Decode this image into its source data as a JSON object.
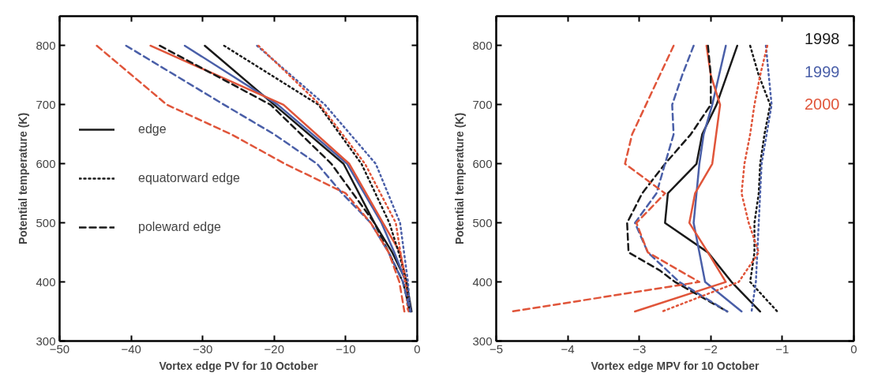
{
  "chart_data": [
    {
      "type": "line",
      "xlabel": "Vortex edge PV for 10 October",
      "ylabel": "Potential temperature (K)",
      "xlim": [
        -50,
        0
      ],
      "ylim": [
        300,
        850
      ],
      "xticks": [
        -50,
        -40,
        -30,
        -20,
        -10,
        0
      ],
      "yticks": [
        300,
        400,
        500,
        600,
        700,
        800
      ],
      "grid": false,
      "legend": "left",
      "marker": "none",
      "series": [
        {
          "name": "edge",
          "color": "#1a1a1a",
          "line_style": "solid",
          "x": [
            -29.7,
            -20,
            -10.3,
            -6,
            -3.5,
            -1.5,
            -0.8
          ],
          "values": [
            800,
            700,
            600,
            500,
            450,
            400,
            350
          ]
        },
        {
          "color": "#4a5fa8",
          "line_style": "solid",
          "x": [
            -32.5,
            -19.5,
            -9.8,
            -5,
            -3.2,
            -1.6,
            -0.9
          ],
          "values": [
            800,
            700,
            600,
            500,
            450,
            400,
            350
          ]
        },
        {
          "color": "#e0553a",
          "line_style": "solid",
          "x": [
            -37.3,
            -18.7,
            -9.5,
            -4.8,
            -2.4,
            -1.5,
            -1.2
          ],
          "values": [
            800,
            700,
            600,
            500,
            450,
            400,
            350
          ]
        },
        {
          "name": "equatorward edge",
          "color": "#1a1a1a",
          "line_style": "dotted",
          "x": [
            -27,
            -13.8,
            -7.8,
            -3.9,
            -2.6,
            -1.5,
            -1
          ],
          "values": [
            800,
            700,
            600,
            500,
            450,
            400,
            350
          ]
        },
        {
          "color": "#4a5fa8",
          "line_style": "dotted",
          "x": [
            -22.4,
            -12.9,
            -5.8,
            -2.4,
            -1.3,
            -1
          ],
          "values": [
            800,
            700,
            600,
            500,
            400,
            350
          ]
        },
        {
          "color": "#e0553a",
          "line_style": "dotted",
          "x": [
            -22.2,
            -13.6,
            -7.3,
            -3,
            -1.7,
            -1.3
          ],
          "values": [
            800,
            700,
            600,
            500,
            400,
            350
          ]
        },
        {
          "name": "poleward edge",
          "color": "#1a1a1a",
          "line_style": "dashed",
          "x": [
            -36,
            -20.5,
            -12,
            -6,
            -4,
            -2,
            -1
          ],
          "values": [
            800,
            700,
            600,
            500,
            450,
            400,
            350
          ]
        },
        {
          "color": "#4a5fa8",
          "line_style": "dashed",
          "x": [
            -40.7,
            -27,
            -20,
            -14,
            -10.5,
            -6.5,
            -4,
            -2,
            -1
          ],
          "values": [
            800,
            700,
            650,
            600,
            550,
            500,
            450,
            400,
            350
          ]
        },
        {
          "color": "#e0553a",
          "line_style": "dashed",
          "x": [
            -44.8,
            -35,
            -26,
            -18.5,
            -10,
            -6.5,
            -4,
            -2.5,
            -1.8
          ],
          "values": [
            800,
            700,
            650,
            600,
            550,
            500,
            450,
            400,
            350
          ]
        }
      ]
    },
    {
      "type": "line",
      "xlabel": "Vortex edge MPV for 10 October",
      "ylabel": "Potential temperature (K)",
      "xlim": [
        -5,
        0
      ],
      "ylim": [
        300,
        850
      ],
      "xticks": [
        -5,
        -4,
        -3,
        -2,
        -1,
        0
      ],
      "yticks": [
        300,
        400,
        500,
        600,
        700,
        800
      ],
      "grid": false,
      "legend": "top right",
      "marker": "none",
      "series": [
        {
          "name": "1998",
          "color": "#1a1a1a",
          "line_style": "solid",
          "x": [
            -1.63,
            -1.92,
            -2.12,
            -2.2,
            -2.6,
            -2.64,
            -2.04,
            -1.71,
            -1.31
          ],
          "values": [
            800,
            700,
            650,
            600,
            550,
            500,
            450,
            400,
            350
          ]
        },
        {
          "name": "1999",
          "color": "#4a5fa8",
          "line_style": "solid",
          "x": [
            -1.79,
            -1.98,
            -2.1,
            -2.16,
            -2.24,
            -2.08,
            -1.57
          ],
          "values": [
            800,
            700,
            650,
            600,
            500,
            400,
            350
          ]
        },
        {
          "name": "2000",
          "color": "#e0553a",
          "line_style": "solid",
          "x": [
            -2.06,
            -2.0,
            -1.87,
            -1.98,
            -2.22,
            -2.3,
            -2.04,
            -1.79,
            -3.06
          ],
          "values": [
            800,
            750,
            700,
            600,
            550,
            500,
            450,
            400,
            350
          ]
        },
        {
          "color": "#1a1a1a",
          "line_style": "dashed",
          "x": [
            -2.04,
            -2.0,
            -2.0,
            -2.28,
            -2.64,
            -2.96,
            -3.17,
            -3.15,
            -2.72,
            -2.5,
            -1.77
          ],
          "values": [
            800,
            750,
            700,
            650,
            600,
            550,
            500,
            450,
            420,
            400,
            350
          ]
        },
        {
          "color": "#4a5fa8",
          "line_style": "dashed",
          "x": [
            -2.24,
            -2.4,
            -2.54,
            -2.52,
            -2.64,
            -2.76,
            -3.06,
            -2.88,
            -2.44,
            -1.77
          ],
          "values": [
            800,
            750,
            700,
            650,
            600,
            550,
            500,
            450,
            400,
            350
          ]
        },
        {
          "color": "#e0553a",
          "line_style": "dashed",
          "x": [
            -2.52,
            -3.1,
            -3.2,
            -2.64,
            -3.04,
            -2.88,
            -2.16,
            -4.78
          ],
          "values": [
            800,
            650,
            600,
            550,
            500,
            450,
            400,
            350
          ]
        },
        {
          "color": "#1a1a1a",
          "line_style": "dotted",
          "x": [
            -1.45,
            -1.33,
            -1.17,
            -1.25,
            -1.31,
            -1.33,
            -1.39,
            -1.39,
            -1.45,
            -1.07
          ],
          "values": [
            800,
            750,
            700,
            650,
            600,
            550,
            500,
            450,
            400,
            350
          ]
        },
        {
          "color": "#4a5fa8",
          "line_style": "dotted",
          "x": [
            -1.23,
            -1.15,
            -1.29,
            -1.33,
            -1.37,
            -1.43
          ],
          "values": [
            800,
            700,
            600,
            500,
            400,
            350
          ]
        },
        {
          "color": "#e0553a",
          "line_style": "dotted",
          "x": [
            -1.21,
            -1.31,
            -1.39,
            -1.45,
            -1.53,
            -1.57,
            -1.47,
            -1.33,
            -1.61,
            -2.68
          ],
          "values": [
            800,
            750,
            700,
            650,
            600,
            550,
            500,
            450,
            400,
            350
          ]
        }
      ]
    }
  ]
}
